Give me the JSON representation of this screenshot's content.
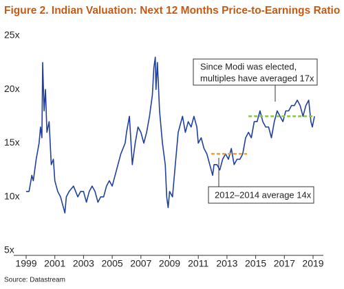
{
  "chart_data": {
    "type": "line",
    "title": "Figure 2. Indian Valuation: Next 12 Months Price-to-Earnings Ratio",
    "source": "Source: Datastream",
    "x": [
      1999.0,
      1999.2,
      1999.4,
      1999.5,
      1999.7,
      1999.9,
      2000.0,
      2000.1,
      2000.15,
      2000.25,
      2000.35,
      2000.45,
      2000.6,
      2000.75,
      2000.9,
      2001.0,
      2001.2,
      2001.4,
      2001.6,
      2001.7,
      2001.8,
      2002.0,
      2002.3,
      2002.6,
      2002.8,
      2003.0,
      2003.2,
      2003.4,
      2003.6,
      2003.8,
      2004.0,
      2004.2,
      2004.4,
      2004.6,
      2004.8,
      2005.0,
      2005.3,
      2005.6,
      2005.9,
      2006.0,
      2006.2,
      2006.4,
      2006.6,
      2006.8,
      2007.0,
      2007.2,
      2007.4,
      2007.6,
      2007.8,
      2007.9,
      2008.0,
      2008.05,
      2008.15,
      2008.3,
      2008.5,
      2008.7,
      2008.8,
      2008.9,
      2009.0,
      2009.2,
      2009.4,
      2009.6,
      2009.7,
      2009.9,
      2010.1,
      2010.3,
      2010.5,
      2010.7,
      2010.9,
      2011.0,
      2011.2,
      2011.4,
      2011.6,
      2011.8,
      2012.0,
      2012.1,
      2012.3,
      2012.5,
      2012.7,
      2012.9,
      2013.1,
      2013.3,
      2013.5,
      2013.7,
      2013.9,
      2014.1,
      2014.3,
      2014.5,
      2014.7,
      2014.9,
      2015.1,
      2015.3,
      2015.5,
      2015.7,
      2015.9,
      2016.1,
      2016.3,
      2016.5,
      2016.7,
      2016.9,
      2017.1,
      2017.3,
      2017.5,
      2017.7,
      2017.9,
      2018.1,
      2018.3,
      2018.5,
      2018.7,
      2018.85,
      2018.95,
      2019.1
    ],
    "series": [
      {
        "color": "#1f3fa0",
        "values": [
          10.5,
          10.5,
          12,
          11.5,
          13.5,
          15,
          16.5,
          15.5,
          22.5,
          18,
          20,
          16,
          17,
          13,
          13.5,
          11.5,
          10.5,
          10,
          9,
          8.5,
          10,
          10.5,
          11,
          10,
          10.5,
          10.5,
          9.5,
          10.5,
          11,
          10.5,
          9.5,
          10,
          10,
          11,
          11.5,
          11,
          12.5,
          14,
          15,
          16,
          17.5,
          13,
          15,
          16.5,
          16,
          15,
          16,
          17.5,
          19.5,
          22,
          23,
          20,
          22.5,
          18,
          15,
          13,
          10,
          9,
          10.5,
          10,
          13,
          16,
          16.5,
          17.5,
          16,
          17,
          16.5,
          17.5,
          16.5,
          15,
          15.5,
          14.5,
          14,
          13,
          12,
          13,
          13,
          12.5,
          13.5,
          14,
          13.5,
          14.5,
          13,
          13.5,
          13.5,
          14,
          15.5,
          16,
          15.5,
          17,
          17,
          18,
          17,
          16.5,
          16.5,
          15.5,
          17,
          18,
          17.5,
          17,
          18,
          18,
          18.5,
          18.5,
          19,
          18.5,
          17.5,
          18.5,
          19,
          17,
          16.5,
          17.5
        ]
      }
    ],
    "reference_lines": [
      {
        "value": 14,
        "x": [
          2011.9,
          2014.4
        ],
        "color": "#f5a020"
      },
      {
        "value": 17.5,
        "x": [
          2014.5,
          2019.1
        ],
        "color": "#8cc63f"
      }
    ],
    "annotations": [
      [
        "Since Modi was elected,",
        "multiples have averaged 17x"
      ],
      [
        "2012–2014 average 14x"
      ]
    ],
    "xlim": [
      1999,
      2019
    ],
    "xticks": [
      1999,
      2001,
      2003,
      2005,
      2007,
      2009,
      2011,
      2013,
      2015,
      2017,
      2019
    ],
    "ylim": [
      5,
      25
    ],
    "yticks": [
      {
        "value": 5,
        "label": "5x"
      },
      {
        "value": 10,
        "label": "10x"
      },
      {
        "value": 15,
        "label": "15x"
      },
      {
        "value": 20,
        "label": "20x"
      },
      {
        "value": 25,
        "label": "25x"
      }
    ]
  }
}
